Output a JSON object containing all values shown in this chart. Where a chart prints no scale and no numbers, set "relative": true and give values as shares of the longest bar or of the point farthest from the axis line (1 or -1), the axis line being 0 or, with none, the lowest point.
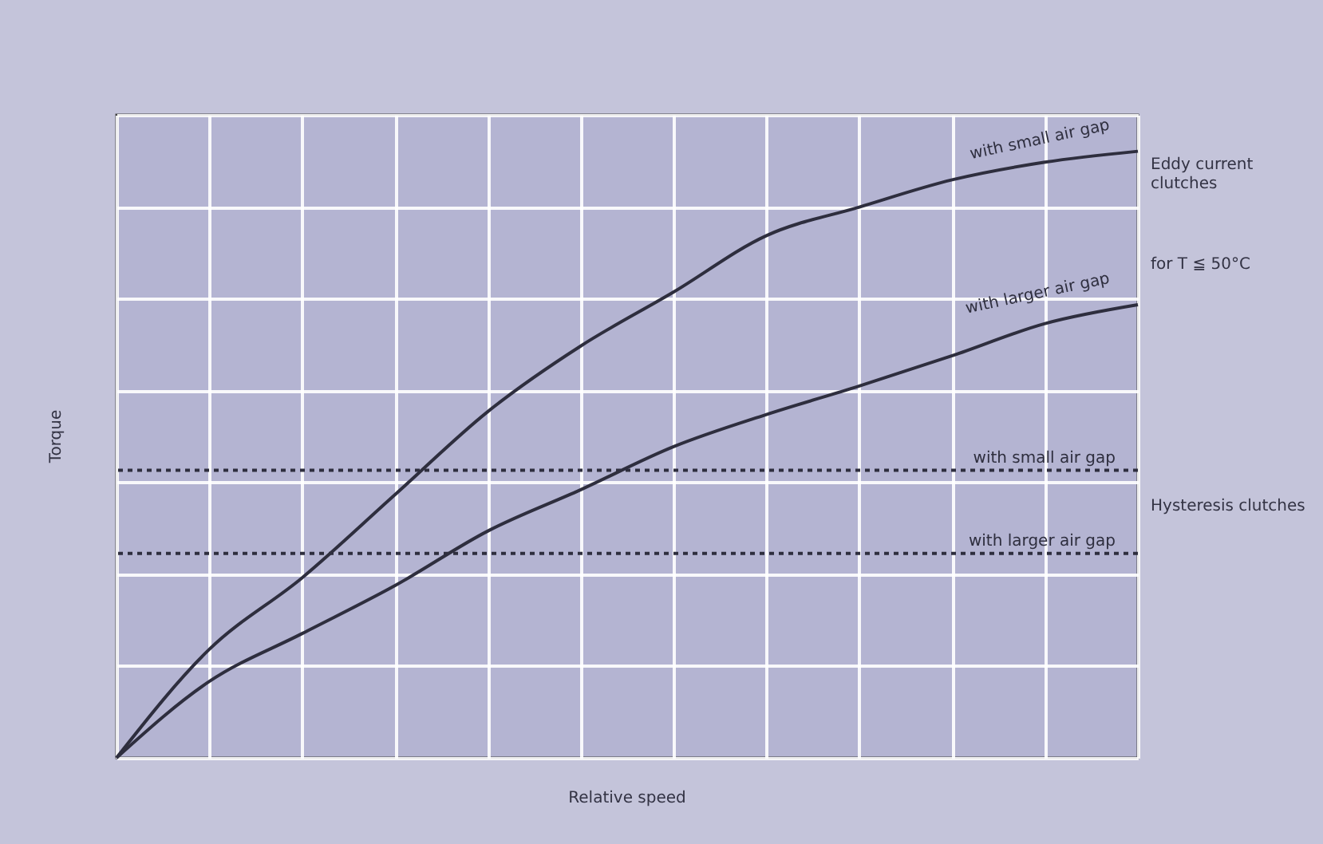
{
  "chart_data": {
    "type": "line",
    "relative": true,
    "xlabel": "Relative speed",
    "ylabel": "Torque",
    "categories": [
      null,
      null,
      null,
      null,
      null,
      null,
      null,
      null,
      null,
      null,
      null,
      null
    ],
    "series": [
      {
        "name": "with small air gap",
        "color": "#2e2e3e",
        "values": [
          0,
          0.179,
          0.297,
          0.434,
          0.571,
          0.679,
          0.768,
          0.861,
          0.908,
          0.953,
          0.982,
          1
        ]
      },
      {
        "name": "with larger air gap",
        "color": "#2e2e3e",
        "values": [
          0,
          0.126,
          0.205,
          0.284,
          0.374,
          0.442,
          0.513,
          0.566,
          0.613,
          0.663,
          0.716,
          0.747
        ]
      }
    ],
    "ref_lines": [
      {
        "axis": "y",
        "value": 0.474,
        "label": "with small air gap",
        "color": "#2e2e3e",
        "line_style": "dotted"
      },
      {
        "axis": "y",
        "value": 0.337,
        "label": "with larger air gap",
        "color": "#2e2e3e",
        "line_style": "dotted"
      }
    ],
    "annotations": [
      "Eddy current clutches",
      "for T ≦ 50°C",
      "Hysteresis clutches"
    ],
    "grid": true,
    "tick_labels": false,
    "line_style": "solid",
    "marker": "none"
  }
}
